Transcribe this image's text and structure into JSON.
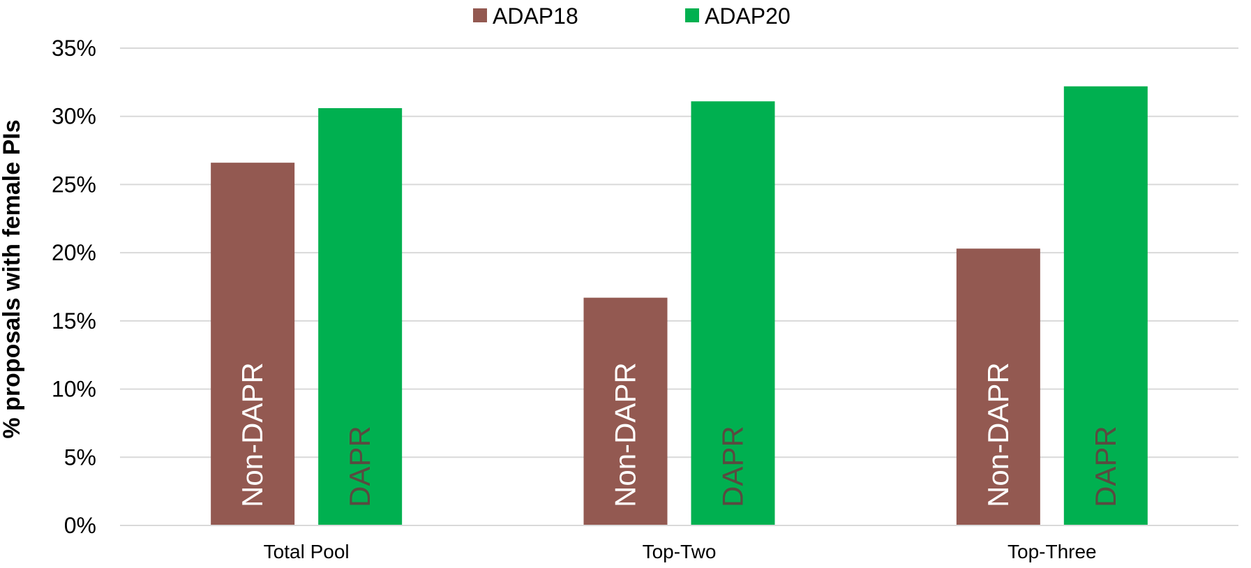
{
  "chart_data": {
    "type": "bar",
    "title": "",
    "xlabel": "",
    "ylabel": "% proposals with female PIs",
    "ylim": [
      0,
      35
    ],
    "yticks": [
      "0%",
      "5%",
      "10%",
      "15%",
      "20%",
      "25%",
      "30%",
      "35%"
    ],
    "ytick_values": [
      0,
      5,
      10,
      15,
      20,
      25,
      30,
      35
    ],
    "grid": true,
    "legend_position": "top-center",
    "categories": [
      "Total Pool",
      "Top-Two",
      "Top-Three"
    ],
    "series": [
      {
        "name": "ADAP18",
        "color": "#935951",
        "bar_label": "Non-DAPR",
        "bar_label_color": "#ffffff",
        "values": [
          26.6,
          16.7,
          20.3
        ]
      },
      {
        "name": "ADAP20",
        "color": "#00b050",
        "bar_label": "DAPR",
        "bar_label_color": "#5a4a40",
        "values": [
          30.6,
          31.1,
          32.2
        ]
      }
    ]
  }
}
